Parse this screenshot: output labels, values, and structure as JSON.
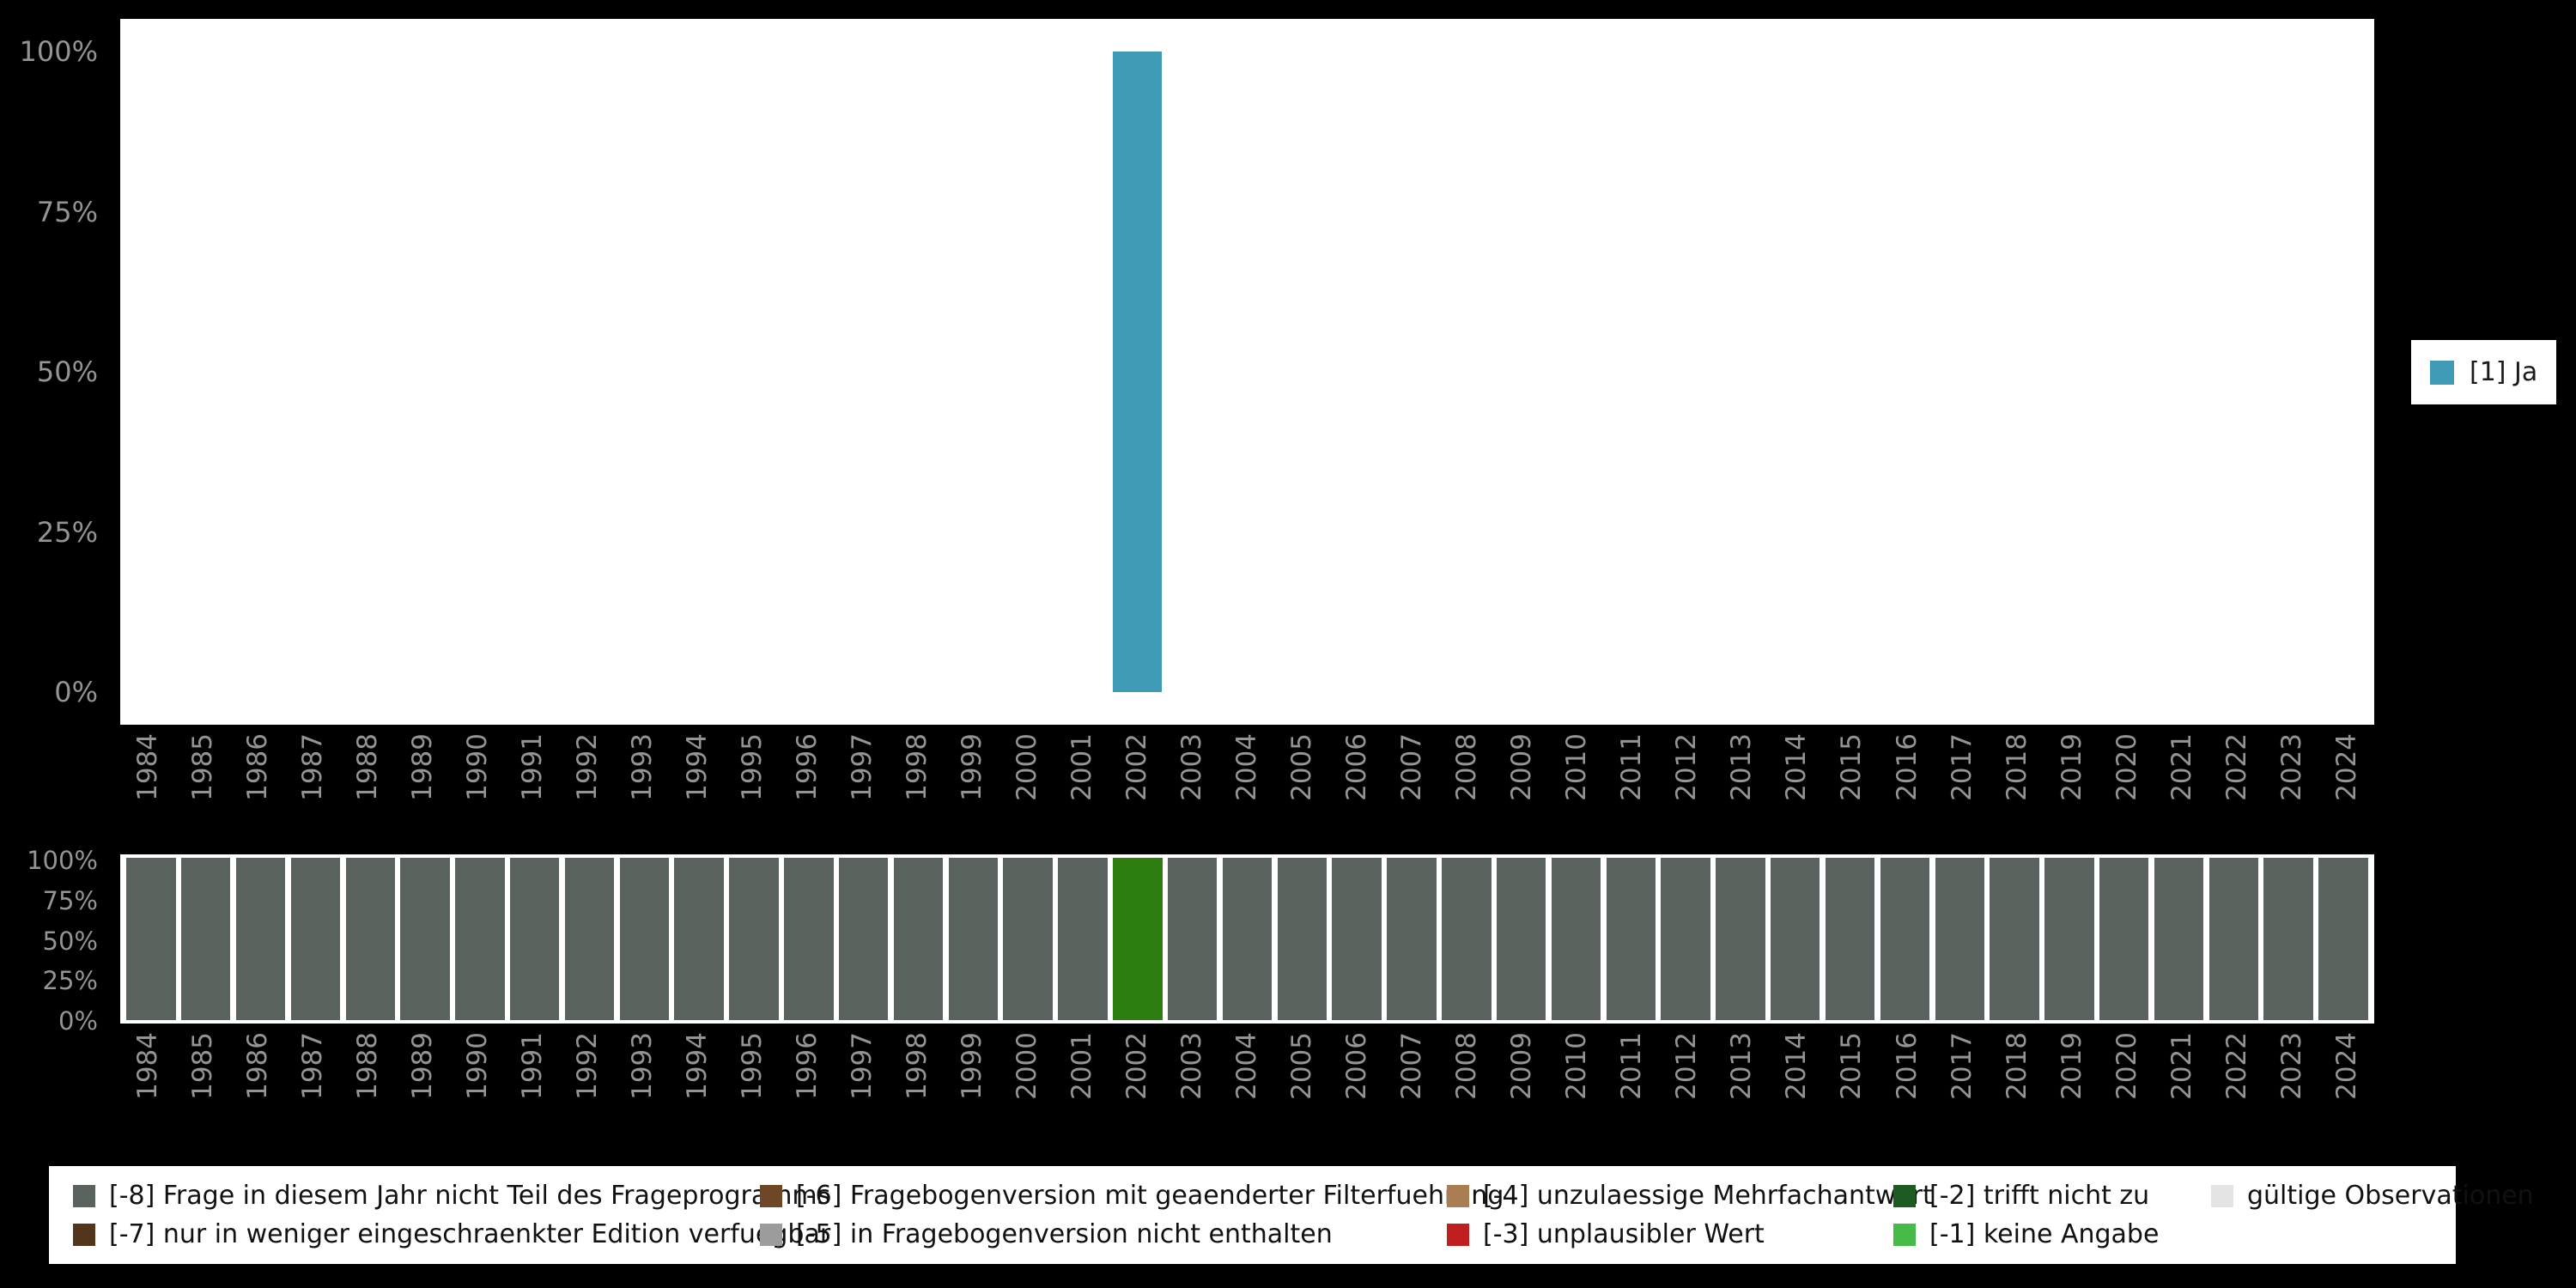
{
  "background": "#000000",
  "chart_data": [
    {
      "type": "bar",
      "title": "",
      "xlabel": "",
      "ylabel": "",
      "categories": [
        "1984",
        "1985",
        "1986",
        "1987",
        "1988",
        "1989",
        "1990",
        "1991",
        "1992",
        "1993",
        "1994",
        "1995",
        "1996",
        "1997",
        "1998",
        "1999",
        "2000",
        "2001",
        "2002",
        "2003",
        "2004",
        "2005",
        "2006",
        "2007",
        "2008",
        "2009",
        "2010",
        "2011",
        "2012",
        "2013",
        "2014",
        "2015",
        "2016",
        "2017",
        "2018",
        "2019",
        "2020",
        "2021",
        "2022",
        "2023",
        "2024"
      ],
      "series": [
        {
          "name": "[1] Ja",
          "color": "#3e9ab5",
          "values": [
            0,
            0,
            0,
            0,
            0,
            0,
            0,
            0,
            0,
            0,
            0,
            0,
            0,
            0,
            0,
            0,
            0,
            0,
            100,
            0,
            0,
            0,
            0,
            0,
            0,
            0,
            0,
            0,
            0,
            0,
            0,
            0,
            0,
            0,
            0,
            0,
            0,
            0,
            0,
            0,
            0
          ]
        }
      ],
      "yticks": [
        "100%",
        "75%",
        "50%",
        "25%",
        "0%"
      ],
      "ylim": [
        0,
        100
      ],
      "grid": false,
      "legend_position": "right"
    },
    {
      "type": "bar",
      "title": "",
      "xlabel": "",
      "ylabel": "",
      "categories": [
        "1984",
        "1985",
        "1986",
        "1987",
        "1988",
        "1989",
        "1990",
        "1991",
        "1992",
        "1993",
        "1994",
        "1995",
        "1996",
        "1997",
        "1998",
        "1999",
        "2000",
        "2001",
        "2002",
        "2003",
        "2004",
        "2005",
        "2006",
        "2007",
        "2008",
        "2009",
        "2010",
        "2011",
        "2012",
        "2013",
        "2014",
        "2015",
        "2016",
        "2017",
        "2018",
        "2019",
        "2020",
        "2021",
        "2022",
        "2023",
        "2024"
      ],
      "values": [
        100,
        100,
        100,
        100,
        100,
        100,
        100,
        100,
        100,
        100,
        100,
        100,
        100,
        100,
        100,
        100,
        100,
        100,
        100,
        100,
        100,
        100,
        100,
        100,
        100,
        100,
        100,
        100,
        100,
        100,
        100,
        100,
        100,
        100,
        100,
        100,
        100,
        100,
        100,
        100,
        100
      ],
      "default_color": "#59625c",
      "highlight_year": "2002",
      "highlight_color": "#2e7d11",
      "yticks": [
        "100%",
        "75%",
        "50%",
        "25%",
        "0%"
      ],
      "ylim": [
        0,
        100
      ],
      "grid": false
    }
  ],
  "series_legend": {
    "label": "[1] Ja",
    "color": "#3e9ab5"
  },
  "missing_legend": {
    "items": [
      {
        "label": "[-8] Frage in diesem Jahr nicht Teil des Frageprogramms",
        "color": "#59625c"
      },
      {
        "label": "[-7] nur in weniger eingeschraenkter Edition verfuegbar",
        "color": "#53351c"
      },
      {
        "label": "[-6] Fragebogenversion mit geaenderter Filterfuehrung",
        "color": "#6d4726"
      },
      {
        "label": "[-5] in Fragebogenversion nicht enthalten",
        "color": "#9c9c9c"
      },
      {
        "label": "[-4] unzulaessige Mehrfachantwort",
        "color": "#a97e52"
      },
      {
        "label": "[-3] unplausibler Wert",
        "color": "#bf1f1f"
      },
      {
        "label": "[-2] trifft nicht zu",
        "color": "#1e5b20"
      },
      {
        "label": "[-1] keine Angabe",
        "color": "#47bb47"
      },
      {
        "label": "gültige Observationen",
        "color": "#e4e4e4"
      }
    ]
  }
}
